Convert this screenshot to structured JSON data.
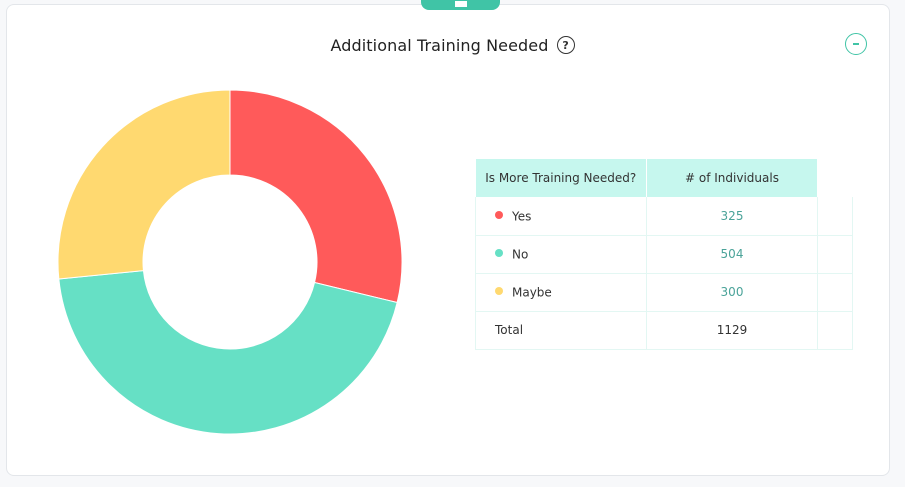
{
  "header": {
    "title": "Additional Training Needed",
    "help_glyph": "?",
    "help_icon": "question-circle-icon",
    "collapse_icon": "minus-circle-icon",
    "drag_icon": "menu-handle-icon"
  },
  "table": {
    "headers": [
      "Is More Training Needed?",
      "# of Individuals"
    ],
    "rows": [
      {
        "label": "Yes",
        "value": "325",
        "color": "#ff5a5a"
      },
      {
        "label": "No",
        "value": "504",
        "color": "#66e0c5"
      },
      {
        "label": "Maybe",
        "value": "300",
        "color": "#ffd970"
      }
    ],
    "total": {
      "label": "Total",
      "value": "1129"
    }
  },
  "chart_data": {
    "type": "pie",
    "donut": true,
    "categories": [
      "Yes",
      "No",
      "Maybe"
    ],
    "values": [
      325,
      504,
      300
    ],
    "colors": [
      "#ff5a5a",
      "#66e0c5",
      "#ffd970"
    ],
    "title": "Additional Training Needed"
  }
}
